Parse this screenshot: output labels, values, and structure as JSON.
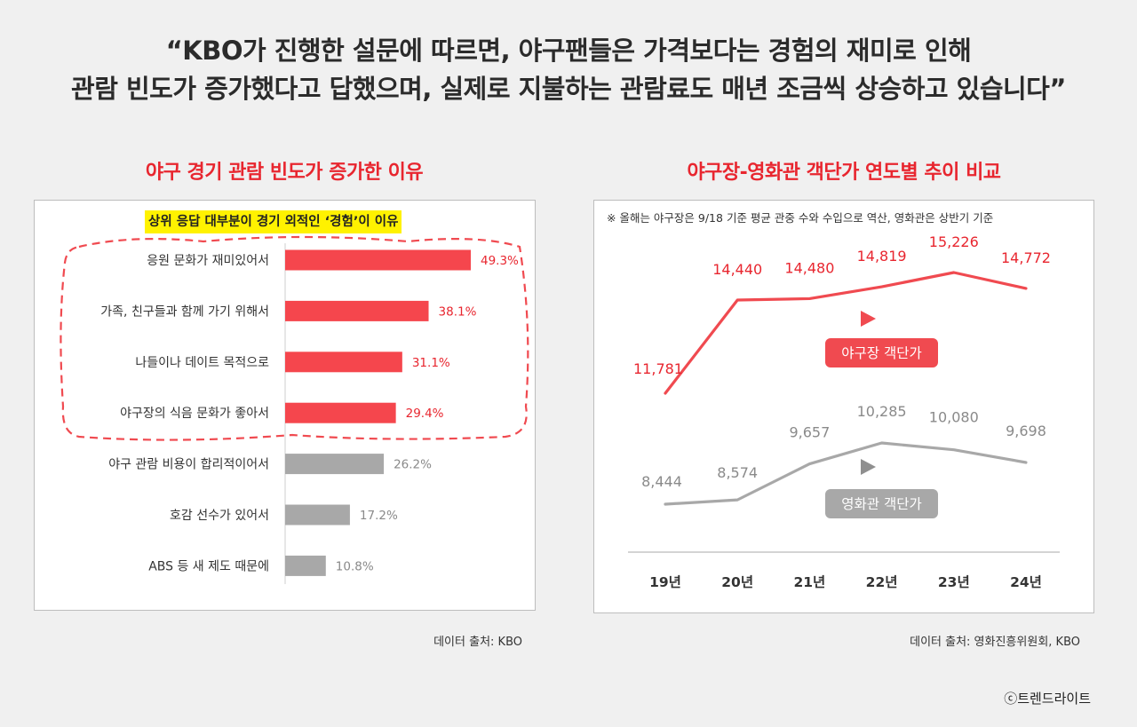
{
  "headline": {
    "line1": "“KBO가 진행한 설문에 따르면, 야구팬들은 가격보다는 경험의 재미로 인해",
    "line2": "관람 빈도가 증가했다고 답했으며, 실제로 지불하는 관람료도 매년 조금씩 상승하고 있습니다”"
  },
  "left": {
    "title": "야구 경기 관람 빈도가 증가한 이유",
    "subtitle": "상위 응답 대부분이 경기 외적인 ‘경험’이 이유",
    "source": "데이터 출처: KBO"
  },
  "right": {
    "title": "야구장-영화관 객단가 연도별 추이 비교",
    "note": "※ 올해는 야구장은 9/18 기준 평균 관중 수와 수입으로 역산, 영화관은 상반기 기준",
    "source": "데이터 출처: 영화진흥위원회, KBO"
  },
  "copyright": "ⓒ트렌드라이트",
  "colors": {
    "accent": "#f04a50",
    "highlight_bar": "#f5464d",
    "gray_bar": "#a8a8a8",
    "red_text": "#e8262f",
    "gray_text": "#8a8a8a"
  },
  "chart_data": [
    {
      "type": "bar",
      "orientation": "horizontal",
      "title": "야구 경기 관람 빈도가 증가한 이유",
      "categories": [
        "응원 문화가 재미있어서",
        "가족, 친구들과 함께 가기 위해서",
        "나들이나 데이트 목적으로",
        "야구장의 식음 문화가 좋아서",
        "야구 관람 비용이 합리적이어서",
        "호감 선수가 있어서",
        "ABS 등 새 제도 때문에"
      ],
      "values": [
        49.3,
        38.1,
        31.1,
        29.4,
        26.2,
        17.2,
        10.8
      ],
      "value_labels": [
        "49.3%",
        "38.1%",
        "31.1%",
        "29.4%",
        "26.2%",
        "17.2%",
        "10.8%"
      ],
      "highlighted": [
        true,
        true,
        true,
        true,
        false,
        false,
        false
      ],
      "xlim": [
        0,
        60
      ]
    },
    {
      "type": "line",
      "title": "야구장-영화관 객단가 연도별 추이 비교",
      "categories": [
        "19년",
        "20년",
        "21년",
        "22년",
        "23년",
        "24년"
      ],
      "series": [
        {
          "name": "야구장 객단가",
          "values": [
            11781,
            14440,
            14480,
            14819,
            15226,
            14772
          ],
          "labels": [
            "11,781",
            "14,440",
            "14,480",
            "14,819",
            "15,226",
            "14,772"
          ],
          "color": "#f04a50"
        },
        {
          "name": "영화관 객단가",
          "values": [
            8444,
            8574,
            9657,
            10285,
            10080,
            9698
          ],
          "labels": [
            "8,444",
            "8,574",
            "9,657",
            "10,285",
            "10,080",
            "9,698"
          ],
          "color": "#a8a8a8"
        }
      ]
    }
  ]
}
